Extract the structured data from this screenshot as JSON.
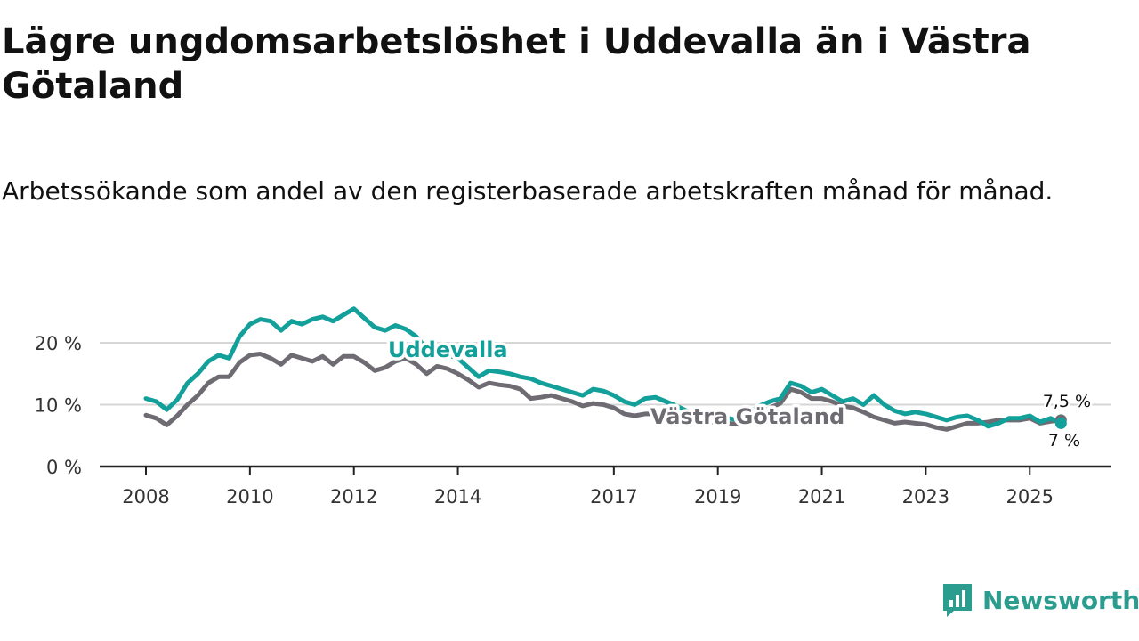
{
  "title": "Lägre ungdomsarbetslöshet i Uddevalla än i Västra Götaland",
  "subtitle": "Arbetssökande som andel av den registerbaserade arbetskraften månad för månad.",
  "brand": {
    "name": "Newsworthy"
  },
  "colors": {
    "uddevalla": "#14a09a",
    "vastra_gotaland": "#6e6b73",
    "grid": "#d6d6d6",
    "axis": "#222222"
  },
  "chart_data": {
    "type": "line",
    "title": "Lägre ungdomsarbetslöshet i Uddevalla än i Västra Götaland",
    "xlabel": "",
    "ylabel": "",
    "xlim": [
      2008,
      2025.8
    ],
    "ylim": [
      0,
      26
    ],
    "x_ticks": [
      {
        "value": 2008,
        "label": "2008"
      },
      {
        "value": 2010,
        "label": "2010"
      },
      {
        "value": 2012,
        "label": "2012"
      },
      {
        "value": 2014,
        "label": "2014"
      },
      {
        "value": 2017,
        "label": "2017"
      },
      {
        "value": 2019,
        "label": "2019"
      },
      {
        "value": 2021,
        "label": "2021"
      },
      {
        "value": 2023,
        "label": "2023"
      },
      {
        "value": 2025,
        "label": "2025"
      }
    ],
    "y_ticks": [
      {
        "value": 0,
        "label": "0 %"
      },
      {
        "value": 10,
        "label": "10 %"
      },
      {
        "value": 20,
        "label": "20 %"
      }
    ],
    "series": [
      {
        "name": "Uddevalla",
        "label": "Uddevalla",
        "end_label": "7 %",
        "points": [
          [
            2008.0,
            11.0
          ],
          [
            2008.2,
            10.5
          ],
          [
            2008.4,
            9.2
          ],
          [
            2008.6,
            10.8
          ],
          [
            2008.8,
            13.5
          ],
          [
            2009.0,
            15.0
          ],
          [
            2009.2,
            17.0
          ],
          [
            2009.4,
            18.0
          ],
          [
            2009.6,
            17.5
          ],
          [
            2009.8,
            21.0
          ],
          [
            2010.0,
            23.0
          ],
          [
            2010.2,
            23.8
          ],
          [
            2010.4,
            23.5
          ],
          [
            2010.6,
            22.0
          ],
          [
            2010.8,
            23.5
          ],
          [
            2011.0,
            23.0
          ],
          [
            2011.2,
            23.8
          ],
          [
            2011.4,
            24.2
          ],
          [
            2011.6,
            23.5
          ],
          [
            2011.8,
            24.5
          ],
          [
            2012.0,
            25.5
          ],
          [
            2012.2,
            24.0
          ],
          [
            2012.4,
            22.5
          ],
          [
            2012.6,
            22.0
          ],
          [
            2012.8,
            22.8
          ],
          [
            2013.0,
            22.2
          ],
          [
            2013.2,
            21.0
          ],
          [
            2013.4,
            19.0
          ],
          [
            2013.6,
            18.5
          ],
          [
            2013.8,
            18.0
          ],
          [
            2014.0,
            17.5
          ],
          [
            2014.2,
            16.0
          ],
          [
            2014.4,
            14.5
          ],
          [
            2014.6,
            15.5
          ],
          [
            2014.8,
            15.3
          ],
          [
            2015.0,
            15.0
          ],
          [
            2015.2,
            14.5
          ],
          [
            2015.4,
            14.2
          ],
          [
            2015.6,
            13.5
          ],
          [
            2015.8,
            13.0
          ],
          [
            2016.0,
            12.5
          ],
          [
            2016.2,
            12.0
          ],
          [
            2016.4,
            11.5
          ],
          [
            2016.6,
            12.5
          ],
          [
            2016.8,
            12.2
          ],
          [
            2017.0,
            11.5
          ],
          [
            2017.2,
            10.5
          ],
          [
            2017.4,
            10.0
          ],
          [
            2017.6,
            11.0
          ],
          [
            2017.8,
            11.2
          ],
          [
            2018.0,
            10.5
          ],
          [
            2018.2,
            9.8
          ],
          [
            2018.4,
            9.0
          ],
          [
            2018.6,
            8.5
          ],
          [
            2018.8,
            8.0
          ],
          [
            2019.0,
            8.2
          ],
          [
            2019.2,
            7.8
          ],
          [
            2019.4,
            7.5
          ],
          [
            2019.6,
            8.8
          ],
          [
            2019.8,
            9.8
          ],
          [
            2020.0,
            10.5
          ],
          [
            2020.2,
            11.0
          ],
          [
            2020.4,
            13.5
          ],
          [
            2020.6,
            13.0
          ],
          [
            2020.8,
            12.0
          ],
          [
            2021.0,
            12.5
          ],
          [
            2021.2,
            11.5
          ],
          [
            2021.4,
            10.5
          ],
          [
            2021.6,
            11.0
          ],
          [
            2021.8,
            10.0
          ],
          [
            2022.0,
            11.5
          ],
          [
            2022.2,
            10.0
          ],
          [
            2022.4,
            9.0
          ],
          [
            2022.6,
            8.5
          ],
          [
            2022.8,
            8.8
          ],
          [
            2023.0,
            8.5
          ],
          [
            2023.2,
            8.0
          ],
          [
            2023.4,
            7.5
          ],
          [
            2023.6,
            8.0
          ],
          [
            2023.8,
            8.2
          ],
          [
            2024.0,
            7.5
          ],
          [
            2024.2,
            6.5
          ],
          [
            2024.4,
            7.0
          ],
          [
            2024.6,
            7.8
          ],
          [
            2024.8,
            7.8
          ],
          [
            2025.0,
            8.2
          ],
          [
            2025.2,
            7.2
          ],
          [
            2025.4,
            7.8
          ],
          [
            2025.6,
            7.0
          ]
        ]
      },
      {
        "name": "Västra Götaland",
        "label": "Västra Götaland",
        "end_label": "7,5 %",
        "points": [
          [
            2008.0,
            8.3
          ],
          [
            2008.2,
            7.8
          ],
          [
            2008.4,
            6.7
          ],
          [
            2008.6,
            8.2
          ],
          [
            2008.8,
            10.0
          ],
          [
            2009.0,
            11.5
          ],
          [
            2009.2,
            13.5
          ],
          [
            2009.4,
            14.5
          ],
          [
            2009.6,
            14.5
          ],
          [
            2009.8,
            16.8
          ],
          [
            2010.0,
            18.0
          ],
          [
            2010.2,
            18.2
          ],
          [
            2010.4,
            17.5
          ],
          [
            2010.6,
            16.5
          ],
          [
            2010.8,
            18.0
          ],
          [
            2011.0,
            17.5
          ],
          [
            2011.2,
            17.0
          ],
          [
            2011.4,
            17.8
          ],
          [
            2011.6,
            16.5
          ],
          [
            2011.8,
            17.8
          ],
          [
            2012.0,
            17.8
          ],
          [
            2012.2,
            16.8
          ],
          [
            2012.4,
            15.5
          ],
          [
            2012.6,
            16.0
          ],
          [
            2012.8,
            17.0
          ],
          [
            2013.0,
            17.5
          ],
          [
            2013.2,
            16.5
          ],
          [
            2013.4,
            15.0
          ],
          [
            2013.6,
            16.2
          ],
          [
            2013.8,
            15.8
          ],
          [
            2014.0,
            15.0
          ],
          [
            2014.2,
            14.0
          ],
          [
            2014.4,
            12.8
          ],
          [
            2014.6,
            13.5
          ],
          [
            2014.8,
            13.2
          ],
          [
            2015.0,
            13.0
          ],
          [
            2015.2,
            12.5
          ],
          [
            2015.4,
            11.0
          ],
          [
            2015.6,
            11.2
          ],
          [
            2015.8,
            11.5
          ],
          [
            2016.0,
            11.0
          ],
          [
            2016.2,
            10.5
          ],
          [
            2016.4,
            9.8
          ],
          [
            2016.6,
            10.2
          ],
          [
            2016.8,
            10.0
          ],
          [
            2017.0,
            9.5
          ],
          [
            2017.2,
            8.5
          ],
          [
            2017.4,
            8.2
          ],
          [
            2017.6,
            8.5
          ],
          [
            2017.8,
            8.5
          ],
          [
            2018.0,
            8.2
          ],
          [
            2018.2,
            8.0
          ],
          [
            2018.4,
            7.8
          ],
          [
            2018.6,
            7.5
          ],
          [
            2018.8,
            7.2
          ],
          [
            2019.0,
            7.2
          ],
          [
            2019.2,
            7.0
          ],
          [
            2019.4,
            6.8
          ],
          [
            2019.6,
            7.8
          ],
          [
            2019.8,
            8.5
          ],
          [
            2020.0,
            9.5
          ],
          [
            2020.2,
            10.2
          ],
          [
            2020.4,
            12.5
          ],
          [
            2020.6,
            12.0
          ],
          [
            2020.8,
            11.0
          ],
          [
            2021.0,
            11.0
          ],
          [
            2021.2,
            10.5
          ],
          [
            2021.4,
            9.8
          ],
          [
            2021.6,
            9.5
          ],
          [
            2021.8,
            8.8
          ],
          [
            2022.0,
            8.0
          ],
          [
            2022.2,
            7.5
          ],
          [
            2022.4,
            7.0
          ],
          [
            2022.6,
            7.2
          ],
          [
            2022.8,
            7.0
          ],
          [
            2023.0,
            6.8
          ],
          [
            2023.2,
            6.3
          ],
          [
            2023.4,
            6.0
          ],
          [
            2023.6,
            6.5
          ],
          [
            2023.8,
            7.0
          ],
          [
            2024.0,
            7.0
          ],
          [
            2024.2,
            7.2
          ],
          [
            2024.4,
            7.5
          ],
          [
            2024.6,
            7.5
          ],
          [
            2024.8,
            7.5
          ],
          [
            2025.0,
            7.8
          ],
          [
            2025.2,
            7.0
          ],
          [
            2025.4,
            7.3
          ],
          [
            2025.6,
            7.5
          ]
        ]
      }
    ]
  }
}
